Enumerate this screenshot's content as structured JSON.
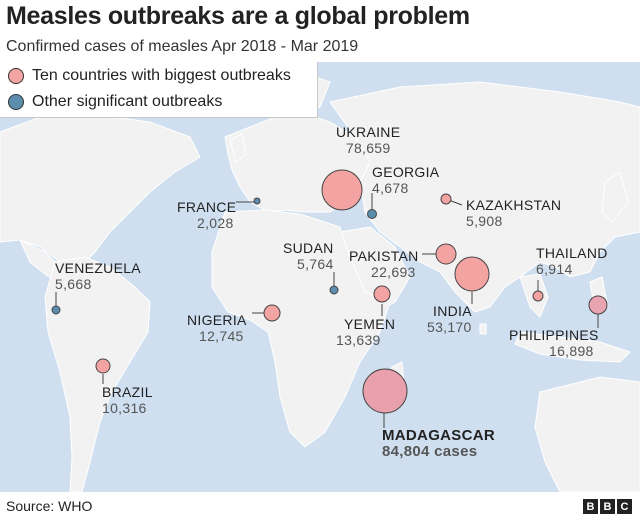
{
  "title": "Measles outbreaks are a global problem",
  "subtitle": "Confirmed cases of measles Apr 2018 - Mar 2019",
  "legend": {
    "items": [
      {
        "label": "Ten countries with biggest outbreaks",
        "color": "#f4a3a3"
      },
      {
        "label": "Other significant outbreaks",
        "color": "#5b8eac"
      }
    ]
  },
  "colors": {
    "water": "#cfdff0",
    "land": "#f2f2f2",
    "big_fill": "#f4a3a3",
    "other_fill": "#5b8eac",
    "outline": "#444444"
  },
  "countries": {
    "ukraine": {
      "name": "UKRAINE",
      "value": "78,659"
    },
    "georgia": {
      "name": "GEORGIA",
      "value": "4,678"
    },
    "kazakhstan": {
      "name": "KAZAKHSTAN",
      "value": "5,908"
    },
    "france": {
      "name": "FRANCE",
      "value": "2,028"
    },
    "sudan": {
      "name": "SUDAN",
      "value": "5,764"
    },
    "pakistan": {
      "name": "PAKISTAN",
      "value": "22,693"
    },
    "thailand": {
      "name": "THAILAND",
      "value": "6,914"
    },
    "venezuela": {
      "name": "VENEZUELA",
      "value": "5,668"
    },
    "india": {
      "name": "INDIA",
      "value": "53,170"
    },
    "nigeria": {
      "name": "NIGERIA",
      "value": "12,745"
    },
    "yemen": {
      "name": "YEMEN",
      "value": "13,639"
    },
    "philippines": {
      "name": "PHILIPPINES",
      "value": "16,898"
    },
    "brazil": {
      "name": "BRAZIL",
      "value": "10,316"
    },
    "madagascar": {
      "name": "MADAGASCAR",
      "value": "84,804 cases"
    }
  },
  "source": "Source: WHO",
  "logo": "BBC"
}
